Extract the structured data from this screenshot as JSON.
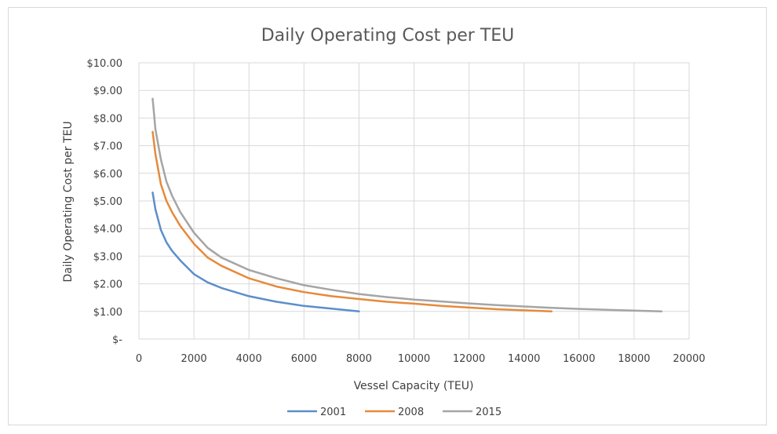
{
  "chart_data": {
    "type": "line",
    "title": "Daily Operating Cost per TEU",
    "xlabel": "Vessel Capacity (TEU)",
    "ylabel": "Daily Operating Cost per TEU",
    "xlim": [
      0,
      20000
    ],
    "ylim": [
      0,
      10
    ],
    "x_ticks": [
      0,
      2000,
      4000,
      6000,
      8000,
      10000,
      12000,
      14000,
      16000,
      18000,
      20000
    ],
    "x_tick_labels": [
      "0",
      "2000",
      "4000",
      "6000",
      "8000",
      "10000",
      "12000",
      "14000",
      "16000",
      "18000",
      "20000"
    ],
    "y_ticks": [
      0,
      1,
      2,
      3,
      4,
      5,
      6,
      7,
      8,
      9,
      10
    ],
    "y_tick_labels": [
      "$-",
      "$1.00",
      "$2.00",
      "$3.00",
      "$4.00",
      "$5.00",
      "$6.00",
      "$7.00",
      "$8.00",
      "$9.00",
      "$10.00"
    ],
    "grid": "vertical-and-horizontal",
    "legend_position": "bottom",
    "series": [
      {
        "name": "2001",
        "color": "#5b8fc9",
        "points": [
          [
            500,
            5.3
          ],
          [
            600,
            4.7
          ],
          [
            800,
            3.95
          ],
          [
            1000,
            3.5
          ],
          [
            1200,
            3.2
          ],
          [
            1500,
            2.85
          ],
          [
            2000,
            2.35
          ],
          [
            2500,
            2.05
          ],
          [
            3000,
            1.85
          ],
          [
            4000,
            1.55
          ],
          [
            5000,
            1.35
          ],
          [
            6000,
            1.2
          ],
          [
            7000,
            1.1
          ],
          [
            8000,
            1.0
          ]
        ]
      },
      {
        "name": "2008",
        "color": "#e58a3c",
        "points": [
          [
            500,
            7.5
          ],
          [
            600,
            6.7
          ],
          [
            800,
            5.6
          ],
          [
            1000,
            5.0
          ],
          [
            1200,
            4.6
          ],
          [
            1500,
            4.1
          ],
          [
            2000,
            3.45
          ],
          [
            2500,
            2.95
          ],
          [
            3000,
            2.65
          ],
          [
            4000,
            2.2
          ],
          [
            5000,
            1.9
          ],
          [
            6000,
            1.7
          ],
          [
            7000,
            1.55
          ],
          [
            8000,
            1.45
          ],
          [
            9000,
            1.35
          ],
          [
            10000,
            1.28
          ],
          [
            11000,
            1.2
          ],
          [
            12000,
            1.14
          ],
          [
            13000,
            1.08
          ],
          [
            14000,
            1.04
          ],
          [
            15000,
            1.0
          ]
        ]
      },
      {
        "name": "2015",
        "color": "#a5a5a5",
        "points": [
          [
            500,
            8.7
          ],
          [
            600,
            7.6
          ],
          [
            800,
            6.5
          ],
          [
            1000,
            5.7
          ],
          [
            1200,
            5.2
          ],
          [
            1500,
            4.6
          ],
          [
            2000,
            3.85
          ],
          [
            2500,
            3.3
          ],
          [
            3000,
            2.95
          ],
          [
            4000,
            2.5
          ],
          [
            5000,
            2.2
          ],
          [
            6000,
            1.95
          ],
          [
            7000,
            1.78
          ],
          [
            8000,
            1.63
          ],
          [
            9000,
            1.52
          ],
          [
            10000,
            1.43
          ],
          [
            11000,
            1.36
          ],
          [
            12000,
            1.29
          ],
          [
            13000,
            1.23
          ],
          [
            14000,
            1.18
          ],
          [
            15000,
            1.13
          ],
          [
            16000,
            1.09
          ],
          [
            17000,
            1.06
          ],
          [
            18000,
            1.03
          ],
          [
            19000,
            1.0
          ]
        ]
      }
    ]
  }
}
